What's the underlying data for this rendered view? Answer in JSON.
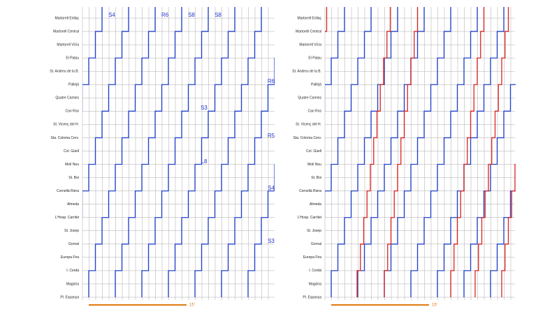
{
  "left_panel": {
    "stations": [
      "Martorell Enllaç",
      "Martorell Central",
      "Martorell Vil.la",
      "El Palau",
      "St. Andreu de la B.",
      "Pallejà",
      "Quatre Camins",
      "Can Ros",
      "St. Vicenç del H.",
      "Sta. Coloma Cerv.",
      "Col. Güell",
      "Molí Nou",
      "St. Boi",
      "Cornellà Riera",
      "Almeda",
      "L'Hosp. Carrilet",
      "St. Josep",
      "Gornal",
      "Europa Fira",
      "I. Cerdà",
      "Magòria",
      "Pl. Espanya"
    ],
    "line_labels": [
      "S4",
      "R6",
      "S8",
      "S8",
      "R6",
      "S3",
      "R5",
      "L8",
      "S4",
      "S3"
    ],
    "scale_label": "15'"
  },
  "right_panel": {
    "stations": [
      "Martorell Enllaç",
      "Martorell Central",
      "Martorell Vil.la",
      "El Palau",
      "St. Andreu de la B.",
      "Pallejà",
      "Quatre Camins",
      "Can Ros",
      "St. Vicenç del H.",
      "Sta. Coloma Cerv.",
      "Col. Güell",
      "Molí Nou",
      "St. Boi",
      "Cornellà Riera",
      "Almeda",
      "L'Hosp. Carrilet",
      "St. Josep",
      "Gornal",
      "Europa Fira",
      "I. Cerdà",
      "Magòria",
      "Pl. Espanya"
    ],
    "scale_label": "15'"
  }
}
